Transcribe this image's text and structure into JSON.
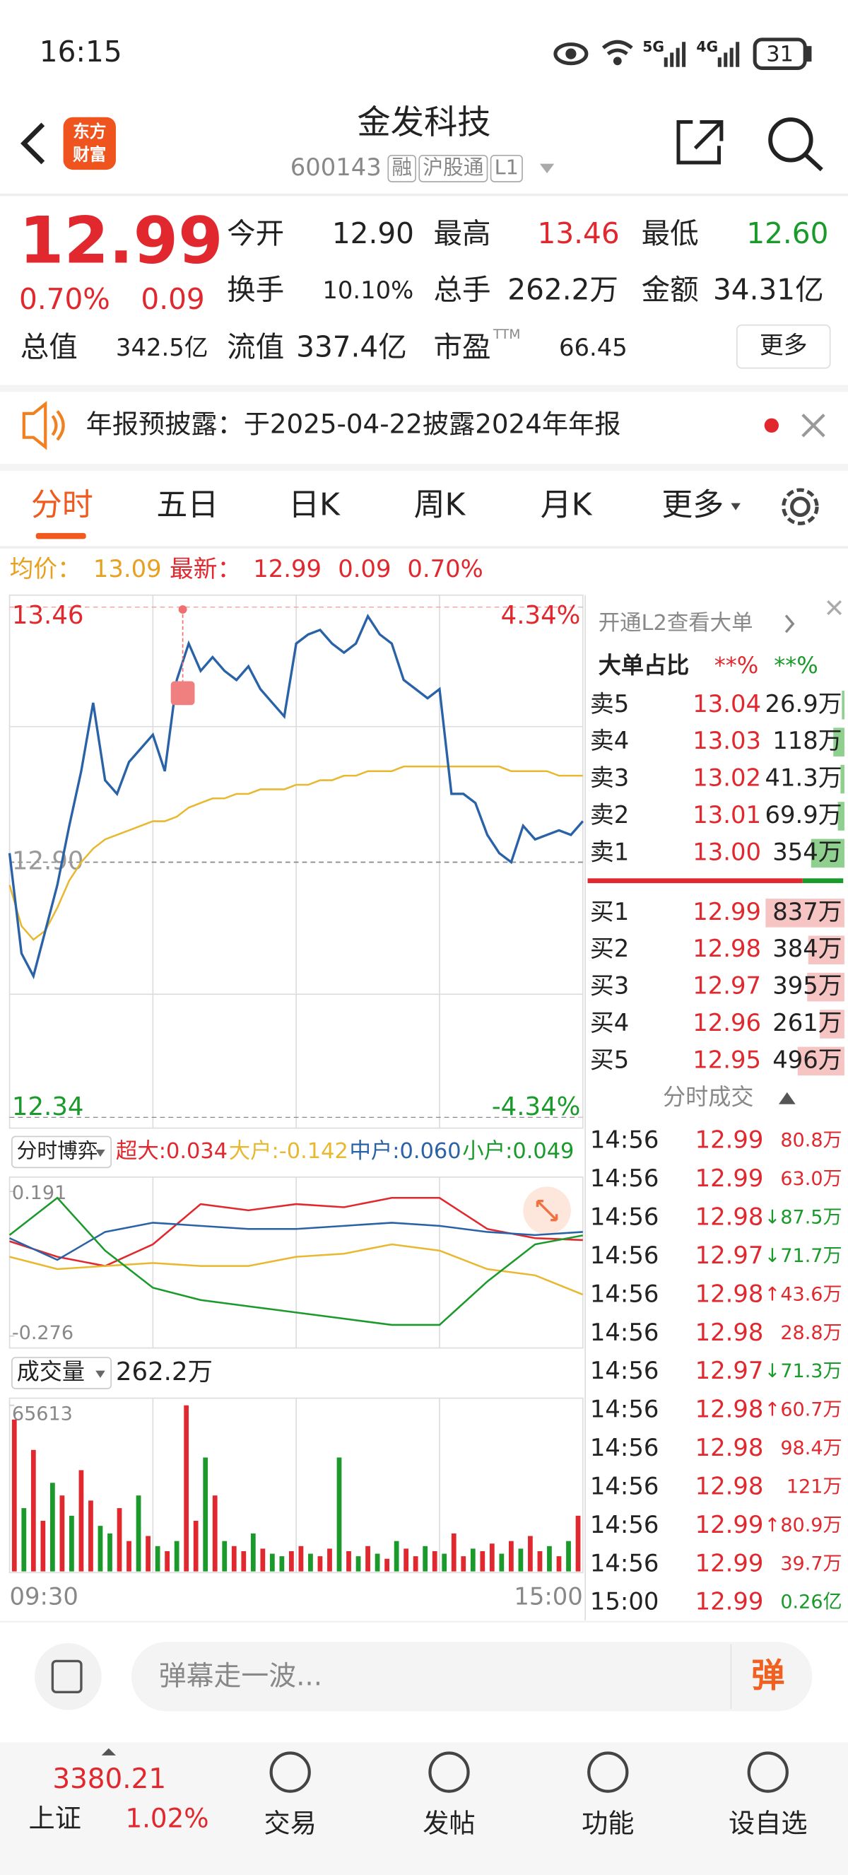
{
  "status_bar": {
    "time": "16:15",
    "net1": "5G",
    "net2": "4G",
    "battery": "31"
  },
  "header": {
    "logo_top": "东方",
    "logo_bottom": "财富",
    "title": "金发科技",
    "code": "600143",
    "tags": [
      "融",
      "沪股通",
      "L1"
    ]
  },
  "quote": {
    "price": "12.99",
    "change_pct": "0.70%",
    "change": "0.09",
    "fields": [
      {
        "label": "今开",
        "value": "12.90"
      },
      {
        "label": "最高",
        "value": "13.46",
        "color": "#e0282e"
      },
      {
        "label": "最低",
        "value": "12.60",
        "color": "#1a9a2a"
      },
      {
        "label": "换手",
        "value": "10.10%"
      },
      {
        "label": "总手",
        "value": "262.2万"
      },
      {
        "label": "金额",
        "value": "34.31亿"
      },
      {
        "label": "总值",
        "value": "342.5亿"
      },
      {
        "label": "流值",
        "value": "337.4亿"
      },
      {
        "label": "市盈",
        "sup": "TTM",
        "value": "66.45"
      }
    ],
    "more": "更多"
  },
  "notice": {
    "text": "年报预披露：于2025-04-22披露2024年年报"
  },
  "tabs": [
    "分时",
    "五日",
    "日K",
    "周K",
    "月K",
    "更多"
  ],
  "summary": {
    "avg_label": "均价：",
    "avg": "13.09",
    "latest_label": "最新：",
    "latest": "12.99",
    "change": "0.09",
    "change_pct": "0.70%"
  },
  "intraday": {
    "type": "line",
    "ylim": [
      12.34,
      13.46
    ],
    "yticks": [
      13.46,
      {
        "value": 12.9,
        "label": "12.90"
      },
      12.34
    ],
    "y2lim": [
      -4.34,
      4.34
    ],
    "y2ticks": [
      {
        "value": 4.34,
        "label": "4.34%"
      },
      {
        "value": -4.34,
        "label": "-4.34%"
      }
    ],
    "series": [
      {
        "color": "#2a62a8",
        "values": [
          12.92,
          12.7,
          12.65,
          12.75,
          12.85,
          12.98,
          13.1,
          13.25,
          13.08,
          13.05,
          13.12,
          13.15,
          13.18,
          13.1,
          13.3,
          13.38,
          13.32,
          13.35,
          13.32,
          13.3,
          13.33,
          13.28,
          13.25,
          13.22,
          13.38,
          13.4,
          13.41,
          13.38,
          13.36,
          13.38,
          13.44,
          13.4,
          13.38,
          13.3,
          13.28,
          13.26,
          13.28,
          13.05,
          13.05,
          13.03,
          12.96,
          12.92,
          12.9,
          12.98,
          12.95,
          12.96,
          12.97,
          12.96,
          12.99
        ]
      },
      {
        "color": "#e8b830",
        "values": [
          12.85,
          12.76,
          12.73,
          12.75,
          12.8,
          12.86,
          12.9,
          12.93,
          12.95,
          12.96,
          12.97,
          12.98,
          12.99,
          12.99,
          13.0,
          13.02,
          13.03,
          13.04,
          13.04,
          13.05,
          13.05,
          13.06,
          13.06,
          13.06,
          13.07,
          13.07,
          13.08,
          13.08,
          13.09,
          13.09,
          13.1,
          13.1,
          13.1,
          13.11,
          13.11,
          13.11,
          13.11,
          13.11,
          13.11,
          13.11,
          13.11,
          13.11,
          13.1,
          13.1,
          13.1,
          13.1,
          13.09,
          13.09,
          13.09
        ]
      }
    ]
  },
  "game": {
    "type": "line",
    "title": "分时博弈",
    "ylim": [
      -0.276,
      0.191
    ],
    "yticks": [
      0.191,
      -0.276
    ],
    "series": [
      {
        "legend": "超大:0.034",
        "color": "#e0282e",
        "values": [
          0.03,
          -0.02,
          -0.05,
          0.02,
          0.15,
          0.13,
          0.15,
          0.14,
          0.17,
          0.17,
          0.07,
          0.04,
          0.034
        ]
      },
      {
        "legend": "大户:-0.142",
        "color": "#e8b830",
        "values": [
          -0.02,
          -0.06,
          -0.05,
          -0.04,
          -0.05,
          -0.05,
          -0.02,
          -0.01,
          0.02,
          0.0,
          -0.06,
          -0.08,
          -0.142
        ]
      },
      {
        "legend": "中户:0.060",
        "color": "#2a62a8",
        "values": [
          0.04,
          -0.03,
          0.06,
          0.09,
          0.08,
          0.07,
          0.07,
          0.08,
          0.09,
          0.08,
          0.06,
          0.05,
          0.06
        ]
      },
      {
        "legend": "小户:0.049",
        "color": "#1a9a2a",
        "values": [
          0.05,
          0.17,
          0.0,
          -0.12,
          -0.16,
          -0.18,
          -0.2,
          -0.22,
          -0.24,
          -0.24,
          -0.1,
          0.02,
          0.049
        ]
      }
    ]
  },
  "volume": {
    "type": "bar",
    "title": "成交量",
    "total": "262.2万",
    "ylim": [
      0,
      65613
    ],
    "yticks": [
      65613
    ],
    "up_color": "#e0282e",
    "down_color": "#1a9a2a",
    "values": [
      60000,
      25000,
      48000,
      20000,
      35000,
      30000,
      22000,
      40000,
      28000,
      18000,
      15000,
      25000,
      12000,
      30000,
      14000,
      10000,
      8000,
      12000,
      65613,
      20000,
      45000,
      30000,
      12000,
      10000,
      8000,
      15000,
      9000,
      7000,
      6000,
      8000,
      10000,
      7000,
      6000,
      9000,
      45000,
      8000,
      6000,
      10000,
      7000,
      5000,
      12000,
      9000,
      6000,
      10000,
      8000,
      7000,
      15000,
      6000,
      9000,
      8000,
      11000,
      7000,
      12000,
      9000,
      14000,
      8000,
      10000,
      6000,
      12000,
      22000
    ],
    "up": [
      true,
      false,
      true,
      true,
      false,
      true,
      false,
      true,
      true,
      false,
      false,
      true,
      true,
      false,
      true,
      false,
      true,
      false,
      true,
      true,
      false,
      true,
      false,
      true,
      true,
      false,
      true,
      false,
      false,
      true,
      true,
      false,
      true,
      true,
      false,
      true,
      false,
      true,
      false,
      true,
      false,
      true,
      true,
      false,
      true,
      false,
      true,
      true,
      false,
      true,
      true,
      false,
      true,
      false,
      true,
      true,
      false,
      true,
      false,
      true
    ],
    "time_labels": [
      "09:30",
      "15:00"
    ]
  },
  "l2": {
    "promo": "开通L2查看大单",
    "ratio_label": "大单占比",
    "ratio_buy": "**%",
    "ratio_sell": "**%"
  },
  "order_book": {
    "asks": [
      {
        "label": "卖5",
        "price": "13.04",
        "volume": 26.9,
        "volume_label": "26.9万"
      },
      {
        "label": "卖4",
        "price": "13.03",
        "volume": 118,
        "volume_label": "118万"
      },
      {
        "label": "卖3",
        "price": "13.02",
        "volume": 41.3,
        "volume_label": "41.3万"
      },
      {
        "label": "卖2",
        "price": "13.01",
        "volume": 69.9,
        "volume_label": "69.9万"
      },
      {
        "label": "卖1",
        "price": "13.00",
        "volume": 354,
        "volume_label": "354万"
      }
    ],
    "bids": [
      {
        "label": "买1",
        "price": "12.99",
        "volume": 837,
        "volume_label": "837万"
      },
      {
        "label": "买2",
        "price": "12.98",
        "volume": 384,
        "volume_label": "384万"
      },
      {
        "label": "买3",
        "price": "12.97",
        "volume": 395,
        "volume_label": "395万"
      },
      {
        "label": "买4",
        "price": "12.96",
        "volume": 261,
        "volume_label": "261万"
      },
      {
        "label": "买5",
        "price": "12.95",
        "volume": 496,
        "volume_label": "496万"
      }
    ]
  },
  "trades": {
    "title": "分时成交",
    "rows": [
      {
        "time": "14:56",
        "price": "12.99",
        "volume": "80.8万",
        "side": "buy"
      },
      {
        "time": "14:56",
        "price": "12.99",
        "volume": "63.0万",
        "side": "buy"
      },
      {
        "time": "14:56",
        "price": "12.98",
        "volume": "↓87.5万",
        "side": "sell"
      },
      {
        "time": "14:56",
        "price": "12.97",
        "volume": "↓71.7万",
        "side": "sell"
      },
      {
        "time": "14:56",
        "price": "12.98",
        "volume": "↑43.6万",
        "side": "buy"
      },
      {
        "time": "14:56",
        "price": "12.98",
        "volume": "28.8万",
        "side": "buy"
      },
      {
        "time": "14:56",
        "price": "12.97",
        "volume": "↓71.3万",
        "side": "sell"
      },
      {
        "time": "14:56",
        "price": "12.98",
        "volume": "↑60.7万",
        "side": "buy"
      },
      {
        "time": "14:56",
        "price": "12.98",
        "volume": "98.4万",
        "side": "buy"
      },
      {
        "time": "14:56",
        "price": "12.98",
        "volume": "121万",
        "side": "buy"
      },
      {
        "time": "14:56",
        "price": "12.99",
        "volume": "↑80.9万",
        "side": "buy"
      },
      {
        "time": "14:56",
        "price": "12.99",
        "volume": "39.7万",
        "side": "buy"
      },
      {
        "time": "15:00",
        "price": "12.99",
        "volume": "0.26亿",
        "side": "sell"
      }
    ]
  },
  "danmaku": {
    "placeholder": "弹幕走一波...",
    "button": "弹"
  },
  "nav": {
    "index_value": "3380.21",
    "index_name": "上证",
    "index_change": "1.02%",
    "items": [
      "交易",
      "发帖",
      "功能",
      "设自选"
    ]
  }
}
